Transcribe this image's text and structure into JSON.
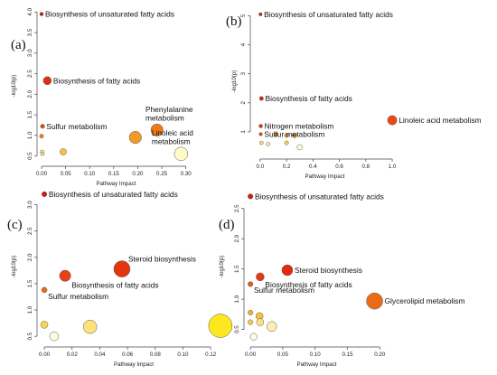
{
  "figure": {
    "background": "#ffffff"
  },
  "chart_data": [
    {
      "panel_label": "(a)",
      "type": "scatter",
      "xlabel": "Pathway Impact",
      "ylabel": "-log10(p)",
      "xlim": [
        0.0,
        0.31
      ],
      "ylim": [
        0.38,
        4.05
      ],
      "xticks": [
        "0.00",
        "0.05",
        "0.10",
        "0.15",
        "0.20",
        "0.25",
        "0.30"
      ],
      "xtick_values": [
        0.0,
        0.05,
        0.1,
        0.15,
        0.2,
        0.25,
        0.3
      ],
      "yticks": [
        "0.5",
        "1.0",
        "1.5",
        "2.0",
        "2.5",
        "3.0",
        "3.5",
        "4.0"
      ],
      "ytick_values": [
        0.5,
        1.0,
        1.5,
        2.0,
        2.5,
        3.0,
        3.5,
        4.0
      ],
      "points": [
        {
          "x": 0.0,
          "y": 3.95,
          "r": 2.0,
          "color": "#d01a0e",
          "label": "Biosynthesis of unsaturated fatty acids",
          "label_pos": "right"
        },
        {
          "x": 0.012,
          "y": 2.33,
          "r": 4.5,
          "color": "#e0300f",
          "label": "Biosynthesis of fatty acids",
          "label_pos": "right"
        },
        {
          "x": 0.002,
          "y": 1.22,
          "r": 2.3,
          "color": "#e24a12",
          "label": "Sulfur metabolism",
          "label_pos": "right"
        },
        {
          "x": 0.0,
          "y": 0.98,
          "r": 2.2,
          "color": "#f07f16",
          "label": "",
          "label_pos": "right"
        },
        {
          "x": 0.001,
          "y": 0.6,
          "r": 2.0,
          "color": "#fff58a",
          "label": "",
          "label_pos": "right"
        },
        {
          "x": 0.002,
          "y": 0.55,
          "r": 2.0,
          "color": "#fbe07c",
          "label": "",
          "label_pos": "right"
        },
        {
          "x": 0.045,
          "y": 0.6,
          "r": 3.6,
          "color": "#f6c33e",
          "label": "",
          "label_pos": "right"
        },
        {
          "x": 0.195,
          "y": 0.95,
          "r": 6.8,
          "color": "#f39a24",
          "label": "",
          "label_pos": "right"
        },
        {
          "x": 0.24,
          "y": 1.13,
          "r": 6.8,
          "color": "#ec7a18",
          "label": "Phenylalanine metabolism",
          "label_pos": "above"
        },
        {
          "x": 0.29,
          "y": 0.55,
          "r": 7.5,
          "color": "#fdfbc9",
          "label": "Linoleic acid metabolism",
          "label_pos": "upper-left"
        }
      ]
    },
    {
      "panel_label": "(b)",
      "type": "scatter",
      "xlabel": "Pathway Impact",
      "ylabel": "-log10(p)",
      "xlim": [
        -0.04,
        1.02
      ],
      "ylim": [
        0.25,
        5.2
      ],
      "xticks": [
        "0.0",
        "0.2",
        "0.4",
        "0.6",
        "0.8",
        "1.0"
      ],
      "xtick_values": [
        0.0,
        0.2,
        0.4,
        0.6,
        0.8,
        1.0
      ],
      "yticks": [
        "1",
        "2",
        "3",
        "4",
        "5"
      ],
      "ytick_values": [
        1,
        2,
        3,
        4,
        5
      ],
      "points": [
        {
          "x": 0.003,
          "y": 5.05,
          "r": 1.8,
          "color": "#d01a0e",
          "label": "Biosynthesis of unsaturated fatty acids",
          "label_pos": "right"
        },
        {
          "x": 0.01,
          "y": 2.15,
          "r": 2.2,
          "color": "#d8250e",
          "label": "Biosynthesis of fatty acids",
          "label_pos": "right"
        },
        {
          "x": 0.005,
          "y": 1.2,
          "r": 2.0,
          "color": "#de3010",
          "label": "Nitrogen metabolism",
          "label_pos": "right"
        },
        {
          "x": 0.005,
          "y": 0.92,
          "r": 1.8,
          "color": "#e24a12",
          "label": "Sulfur metabolism",
          "label_pos": "right"
        },
        {
          "x": 0.12,
          "y": 0.9,
          "r": 2.2,
          "color": "#f08a1c",
          "label": "",
          "label_pos": "right"
        },
        {
          "x": 0.2,
          "y": 0.88,
          "r": 2.3,
          "color": "#f39a24",
          "label": "",
          "label_pos": "right"
        },
        {
          "x": 0.26,
          "y": 0.88,
          "r": 2.6,
          "color": "#f2a030",
          "label": "",
          "label_pos": "right"
        },
        {
          "x": 0.01,
          "y": 0.62,
          "r": 2.0,
          "color": "#fbe07c",
          "label": "",
          "label_pos": "right"
        },
        {
          "x": 0.06,
          "y": 0.58,
          "r": 2.0,
          "color": "#fdf0a8",
          "label": "",
          "label_pos": "right"
        },
        {
          "x": 0.2,
          "y": 0.62,
          "r": 2.2,
          "color": "#f8d256",
          "label": "",
          "label_pos": "right"
        },
        {
          "x": 0.3,
          "y": 0.47,
          "r": 3.0,
          "color": "#fefbe0",
          "label": "",
          "label_pos": "right"
        },
        {
          "x": 1.0,
          "y": 1.4,
          "r": 5.2,
          "color": "#ea4a12",
          "label": "Linoleic acid metabolism",
          "label_pos": "right"
        }
      ]
    },
    {
      "panel_label": "(c)",
      "type": "scatter",
      "xlabel": "Pathway Impact",
      "ylabel": "-log10(p)",
      "xlim": [
        -0.002,
        0.131
      ],
      "ylim": [
        0.4,
        3.25
      ],
      "xticks": [
        "0.00",
        "0.02",
        "0.04",
        "0.06",
        "0.08",
        "0.10",
        "0.12"
      ],
      "xtick_values": [
        0.0,
        0.02,
        0.04,
        0.06,
        0.08,
        0.1,
        0.12
      ],
      "yticks": [
        "0.5",
        "1.0",
        "1.5",
        "2.0",
        "2.5",
        "3.0"
      ],
      "ytick_values": [
        0.5,
        1.0,
        1.5,
        2.0,
        2.5,
        3.0
      ],
      "points": [
        {
          "x": 0.0,
          "y": 3.2,
          "r": 2.8,
          "color": "#d01a0e",
          "label": "Biosynthesis of unsaturated fatty acids",
          "label_pos": "right"
        },
        {
          "x": 0.056,
          "y": 1.78,
          "r": 9.0,
          "color": "#e4350e",
          "label": "Steroid biosynthesis",
          "label_pos": "upper-right"
        },
        {
          "x": 0.015,
          "y": 1.65,
          "r": 6.2,
          "color": "#e84214",
          "label": "Biosynthesis of fatty acids",
          "label_pos": "lower-right"
        },
        {
          "x": 0.0,
          "y": 1.38,
          "r": 3.0,
          "color": "#ec6a16",
          "label": "Sulfur metabolism",
          "label_pos": "lower-right"
        },
        {
          "x": 0.0,
          "y": 0.72,
          "r": 4.0,
          "color": "#f8d64c",
          "label": "",
          "label_pos": "right"
        },
        {
          "x": 0.007,
          "y": 0.5,
          "r": 5.0,
          "color": "#fefbe0",
          "label": "",
          "label_pos": "right"
        },
        {
          "x": 0.033,
          "y": 0.68,
          "r": 7.5,
          "color": "#fce27a",
          "label": "",
          "label_pos": "right"
        },
        {
          "x": 0.127,
          "y": 0.7,
          "r": 13.0,
          "color": "#fbe81e",
          "label": "",
          "label_pos": "right"
        }
      ]
    },
    {
      "panel_label": "(d)",
      "type": "scatter",
      "xlabel": "Pathway Impact",
      "ylabel": "-log10(p)",
      "xlim": [
        -0.003,
        0.208
      ],
      "ylim": [
        0.3,
        2.75
      ],
      "xticks": [
        "0.00",
        "0.05",
        "0.10",
        "0.15",
        "0.20"
      ],
      "xtick_values": [
        0.0,
        0.05,
        0.1,
        0.15,
        0.2
      ],
      "yticks": [
        "0.5",
        "1.0",
        "1.5",
        "2.0",
        "2.5"
      ],
      "ytick_values": [
        0.5,
        1.0,
        1.5,
        2.0,
        2.5
      ],
      "points": [
        {
          "x": 0.0,
          "y": 2.7,
          "r": 2.8,
          "color": "#d01a0e",
          "label": "Biosynthesis of unsaturated fatty acids",
          "label_pos": "right"
        },
        {
          "x": 0.057,
          "y": 1.48,
          "r": 6.0,
          "color": "#e3290e",
          "label": "Steroid biosynthesis",
          "label_pos": "right"
        },
        {
          "x": 0.015,
          "y": 1.37,
          "r": 4.5,
          "color": "#e53a12",
          "label": "Biosynthesis of fatty acids",
          "label_pos": "lower-right"
        },
        {
          "x": 0.0,
          "y": 1.25,
          "r": 2.8,
          "color": "#e85a14",
          "label": "Sulfur metabolism",
          "label_pos": "lower-right"
        },
        {
          "x": 0.192,
          "y": 0.97,
          "r": 9.0,
          "color": "#eb6a16",
          "label": "Glycerolipid metabolism",
          "label_pos": "right"
        },
        {
          "x": 0.0,
          "y": 0.78,
          "r": 2.8,
          "color": "#f6b030",
          "label": "",
          "label_pos": "right"
        },
        {
          "x": 0.0,
          "y": 0.62,
          "r": 2.8,
          "color": "#f8cc48",
          "label": "",
          "label_pos": "right"
        },
        {
          "x": 0.014,
          "y": 0.72,
          "r": 4.0,
          "color": "#f8c040",
          "label": "",
          "label_pos": "right"
        },
        {
          "x": 0.015,
          "y": 0.62,
          "r": 4.0,
          "color": "#fbe280",
          "label": "",
          "label_pos": "right"
        },
        {
          "x": 0.033,
          "y": 0.55,
          "r": 5.5,
          "color": "#fdedb0",
          "label": "",
          "label_pos": "right"
        },
        {
          "x": 0.005,
          "y": 0.38,
          "r": 3.8,
          "color": "#fefbe8",
          "label": "",
          "label_pos": "right"
        }
      ]
    }
  ]
}
